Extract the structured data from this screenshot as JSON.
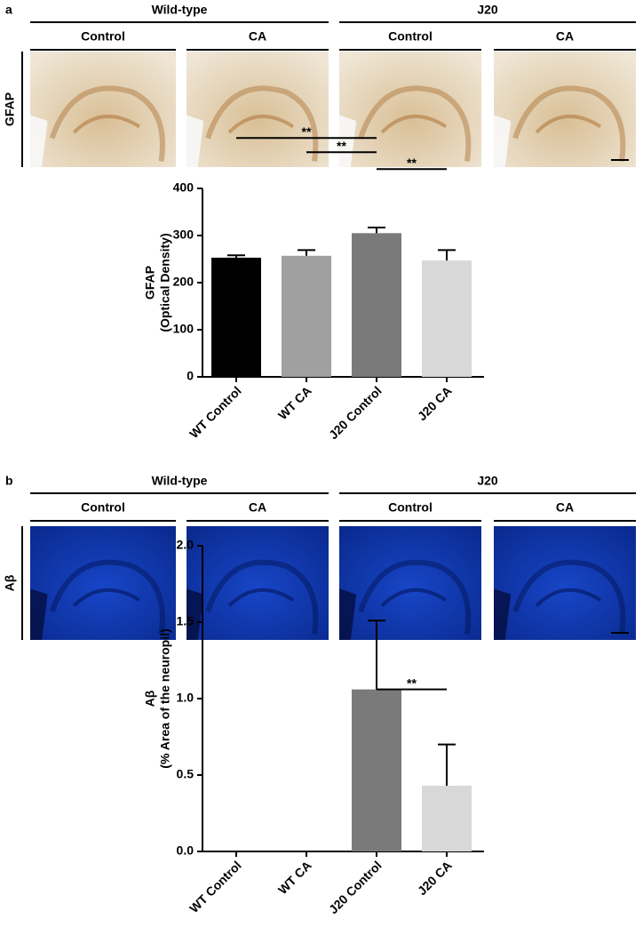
{
  "panels": [
    {
      "label": "a",
      "row_label": "GFAP",
      "groups": [
        {
          "name": "Wild-type",
          "columns": [
            "Control",
            "CA"
          ]
        },
        {
          "name": "J20",
          "columns": [
            "Control",
            "CA"
          ]
        }
      ]
    },
    {
      "label": "b",
      "row_label": "Aβ",
      "groups": [
        {
          "name": "Wild-type",
          "columns": [
            "Control",
            "CA"
          ]
        },
        {
          "name": "J20",
          "columns": [
            "Control",
            "CA"
          ]
        }
      ]
    }
  ],
  "chart_data": [
    {
      "type": "bar",
      "ylabel": [
        "GFAP",
        "(Optical Density)"
      ],
      "categories": [
        "WT Control",
        "WT CA",
        "J20 Control",
        "J20 CA"
      ],
      "values": [
        253,
        257,
        305,
        247
      ],
      "errors": [
        5,
        12,
        12,
        22
      ],
      "colors": [
        "#000000",
        "#a0a0a0",
        "#7a7a7a",
        "#d8d8d8"
      ],
      "ylim": [
        0,
        400
      ],
      "yticks": [
        0,
        100,
        200,
        300,
        400
      ],
      "significance": [
        {
          "from": 0,
          "to": 2,
          "y": 507,
          "label": "**"
        },
        {
          "from": 1,
          "to": 2,
          "y": 477,
          "label": "**"
        },
        {
          "from": 2,
          "to": 3,
          "y": 441,
          "label": "**"
        }
      ]
    },
    {
      "type": "bar",
      "ylabel": [
        "Aβ",
        "(% Area of the neuropil)"
      ],
      "categories": [
        "WT Control",
        "WT CA",
        "J20 Control",
        "J20 CA"
      ],
      "values": [
        0,
        0,
        1.06,
        0.43
      ],
      "errors": [
        0,
        0,
        0.45,
        0.27
      ],
      "colors": [
        "#000000",
        "#a0a0a0",
        "#7a7a7a",
        "#d8d8d8"
      ],
      "ylim": [
        0,
        2
      ],
      "yticks": [
        {
          "value": 0,
          "label": "0.0"
        },
        0.5,
        {
          "value": 1,
          "label": "1.0"
        },
        1.5,
        {
          "value": 2,
          "label": "2.0"
        }
      ],
      "significance": [
        {
          "from": 2,
          "to": 3,
          "y": 1.06,
          "label": "**"
        }
      ]
    }
  ]
}
